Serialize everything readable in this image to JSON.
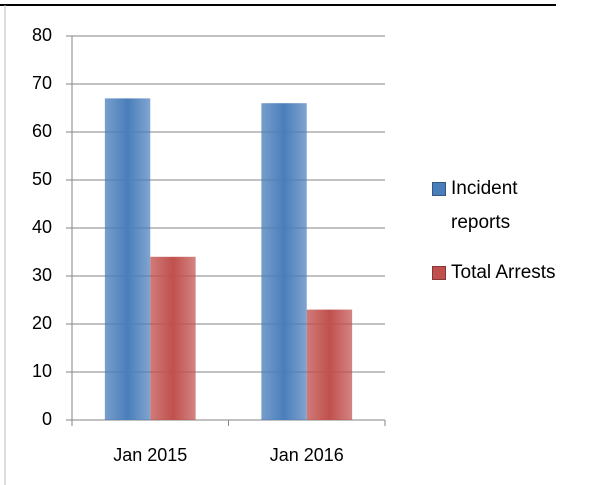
{
  "chart_data": {
    "type": "bar",
    "categories": [
      "Jan 2015",
      "Jan 2016"
    ],
    "series": [
      {
        "name": "Incident reports",
        "color": "#4a7ebb",
        "values": [
          67,
          66
        ]
      },
      {
        "name": "Total Arrests",
        "color": "#c0504d",
        "values": [
          34,
          23
        ]
      }
    ],
    "ylim": [
      0,
      80
    ],
    "yticks": [
      0,
      10,
      20,
      30,
      40,
      50,
      60,
      70,
      80
    ],
    "grid": true,
    "legend": "right"
  }
}
